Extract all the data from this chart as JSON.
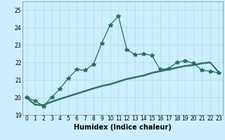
{
  "title": "",
  "xlabel": "Humidex (Indice chaleur)",
  "bg_color": "#cceeff",
  "line_color": "#2d6b5e",
  "x": [
    0,
    1,
    2,
    3,
    4,
    5,
    6,
    7,
    8,
    9,
    10,
    11,
    12,
    13,
    14,
    15,
    16,
    17,
    18,
    19,
    20,
    21,
    22,
    23
  ],
  "y_main": [
    20.0,
    19.8,
    19.5,
    20.0,
    20.5,
    21.1,
    21.6,
    21.55,
    21.9,
    23.1,
    24.15,
    24.65,
    22.75,
    22.45,
    22.5,
    22.4,
    21.6,
    21.65,
    22.0,
    22.1,
    21.95,
    21.55,
    21.5,
    21.4
  ],
  "y_line1": [
    19.95,
    19.55,
    19.52,
    19.72,
    19.88,
    20.03,
    20.18,
    20.33,
    20.48,
    20.62,
    20.72,
    20.87,
    21.02,
    21.12,
    21.22,
    21.37,
    21.47,
    21.57,
    21.67,
    21.77,
    21.82,
    21.92,
    21.97,
    21.42
  ],
  "y_line2": [
    19.98,
    19.58,
    19.55,
    19.75,
    19.91,
    20.06,
    20.21,
    20.36,
    20.51,
    20.65,
    20.75,
    20.9,
    21.05,
    21.15,
    21.25,
    21.4,
    21.5,
    21.6,
    21.7,
    21.8,
    21.85,
    21.95,
    22.0,
    21.45
  ],
  "y_line3": [
    20.01,
    19.61,
    19.58,
    19.78,
    19.94,
    20.09,
    20.24,
    20.39,
    20.54,
    20.68,
    20.78,
    20.93,
    21.08,
    21.18,
    21.28,
    21.43,
    21.53,
    21.63,
    21.73,
    21.83,
    21.88,
    21.98,
    22.03,
    21.48
  ],
  "ylim": [
    19.0,
    25.5
  ],
  "xlim": [
    -0.5,
    23.5
  ],
  "yticks": [
    19,
    20,
    21,
    22,
    23,
    24,
    25
  ],
  "xticks": [
    0,
    1,
    2,
    3,
    4,
    5,
    6,
    7,
    8,
    9,
    10,
    11,
    12,
    13,
    14,
    15,
    16,
    17,
    18,
    19,
    20,
    21,
    22,
    23
  ],
  "grid_color": "#aadddd",
  "xlabel_fontsize": 7,
  "tick_fontsize": 5.5,
  "marker": "*",
  "markersize": 4,
  "lw_main": 0.9,
  "lw_sub": 0.75
}
